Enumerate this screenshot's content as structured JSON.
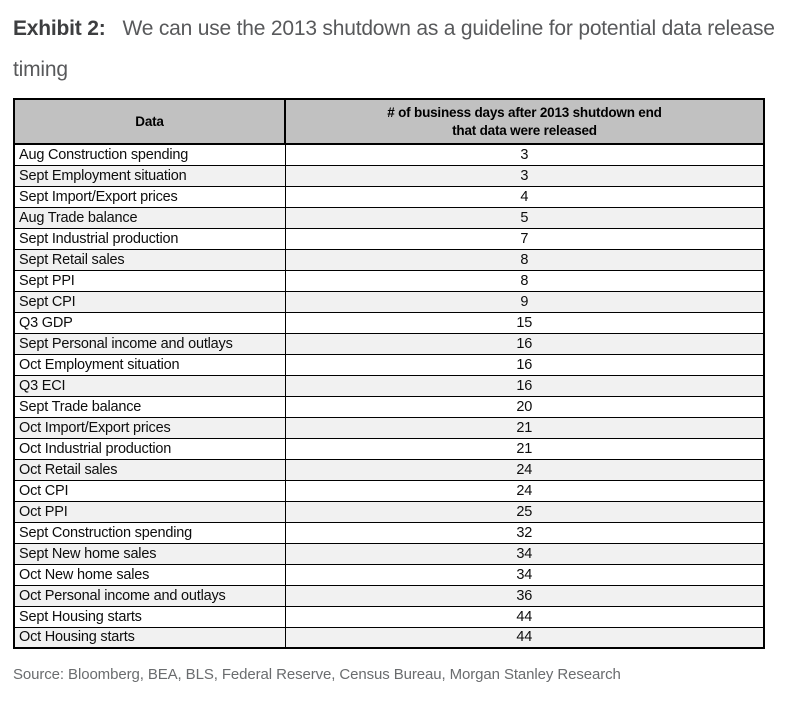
{
  "exhibit": {
    "label": "Exhibit 2:",
    "title": "We can use the 2013 shutdown as a guideline for potential data release timing"
  },
  "table": {
    "header": {
      "data_col": "Data",
      "days_col": "# of business days after 2013 shutdown end\nthat data were released"
    },
    "rows": [
      {
        "data": "Aug Construction spending",
        "days": "3"
      },
      {
        "data": "Sept Employment situation",
        "days": "3"
      },
      {
        "data": "Sept Import/Export prices",
        "days": "4"
      },
      {
        "data": "Aug Trade balance",
        "days": "5"
      },
      {
        "data": "Sept Industrial production",
        "days": "7"
      },
      {
        "data": "Sept Retail sales",
        "days": "8"
      },
      {
        "data": "Sept PPI",
        "days": "8"
      },
      {
        "data": "Sept CPI",
        "days": "9"
      },
      {
        "data": "Q3 GDP",
        "days": "15"
      },
      {
        "data": "Sept Personal income and outlays",
        "days": "16"
      },
      {
        "data": "Oct Employment situation",
        "days": "16"
      },
      {
        "data": "Q3 ECI",
        "days": "16"
      },
      {
        "data": "Sept Trade balance",
        "days": "20"
      },
      {
        "data": "Oct Import/Export prices",
        "days": "21"
      },
      {
        "data": "Oct Industrial production",
        "days": "21"
      },
      {
        "data": "Oct Retail sales",
        "days": "24"
      },
      {
        "data": "Oct CPI",
        "days": "24"
      },
      {
        "data": "Oct PPI",
        "days": "25"
      },
      {
        "data": "Sept Construction spending",
        "days": "32"
      },
      {
        "data": "Sept New home sales",
        "days": "34"
      },
      {
        "data": "Oct New home sales",
        "days": "34"
      },
      {
        "data": "Oct Personal income and outlays",
        "days": "36"
      },
      {
        "data": "Sept Housing starts",
        "days": "44"
      },
      {
        "data": "Oct Housing starts",
        "days": "44"
      }
    ]
  },
  "source": "Source: Bloomberg, BEA, BLS, Federal Reserve, Census Bureau, Morgan Stanley Research",
  "colors": {
    "header_background": "#c1c1c1",
    "alt_row_background": "#f1f1f1",
    "border": "#000000",
    "title_text": "#58595b",
    "source_text": "#6a6c6e"
  }
}
